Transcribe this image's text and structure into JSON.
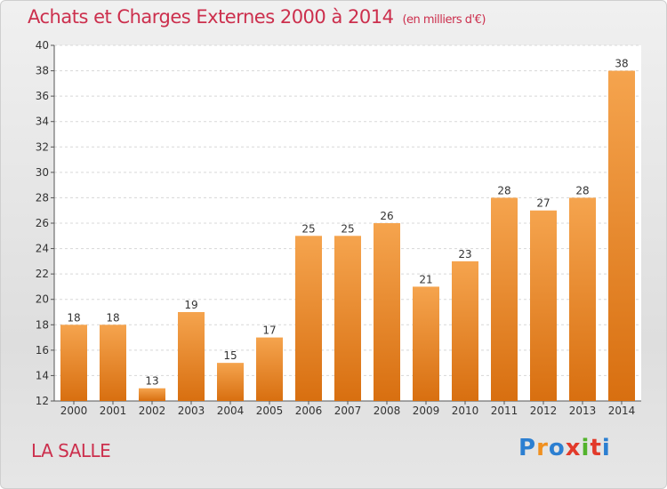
{
  "title": "Achats et Charges Externes 2000 à 2014",
  "unit_label": "(en milliers d'€)",
  "commune": "LA SALLE",
  "logo": {
    "text": "Proxiti",
    "letters": [
      {
        "ch": "P",
        "color": "#2c7fd1"
      },
      {
        "ch": "r",
        "color": "#f09020"
      },
      {
        "ch": "o",
        "color": "#2c7fd1"
      },
      {
        "ch": "x",
        "color": "#e23a2a"
      },
      {
        "ch": "i",
        "color": "#52b32c"
      },
      {
        "ch": "t",
        "color": "#e23a2a"
      },
      {
        "ch": "i",
        "color": "#2c7fd1"
      }
    ]
  },
  "colors": {
    "bar_top": "#f5a44e",
    "bar_bottom": "#d86f10",
    "title": "#cc2f4d"
  },
  "chart_data": {
    "type": "bar",
    "categories": [
      "2000",
      "2001",
      "2002",
      "2003",
      "2004",
      "2005",
      "2006",
      "2007",
      "2008",
      "2009",
      "2010",
      "2011",
      "2012",
      "2013",
      "2014"
    ],
    "values": [
      18,
      18,
      13,
      19,
      15,
      17,
      25,
      25,
      26,
      21,
      23,
      28,
      27,
      28,
      38
    ],
    "ylim": [
      12,
      40
    ],
    "yticks": [
      12,
      14,
      16,
      18,
      20,
      22,
      24,
      26,
      28,
      30,
      32,
      34,
      36,
      38,
      40
    ],
    "grid": true,
    "data_labels": true
  }
}
